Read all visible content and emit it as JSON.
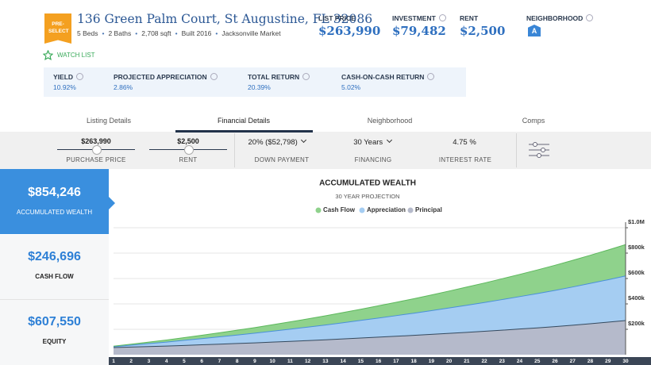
{
  "header": {
    "badge": "PRE-SELECT",
    "address": "136 Green Palm Court, St Augustine, FL 32086",
    "details": [
      "5 Beds",
      "2 Baths",
      "2,708 sqft",
      "Built 2016",
      "Jacksonville Market"
    ],
    "watch_list": "WATCH LIST"
  },
  "stats": [
    {
      "label": "LIST PRICE",
      "value": "$263,990"
    },
    {
      "label": "INVESTMENT",
      "value": "$79,482"
    },
    {
      "label": "RENT",
      "value": "$2,500"
    },
    {
      "label": "NEIGHBORHOOD",
      "value": "A"
    }
  ],
  "metrics": [
    {
      "label": "YIELD",
      "value": "10.92%"
    },
    {
      "label": "PROJECTED APPRECIATION",
      "value": "2.86%"
    },
    {
      "label": "TOTAL RETURN",
      "value": "20.39%"
    },
    {
      "label": "CASH-ON-CASH RETURN",
      "value": "5.02%"
    }
  ],
  "tabs": [
    "Listing Details",
    "Financial Details",
    "Neighborhood",
    "Comps"
  ],
  "controls": [
    {
      "value": "$263,990",
      "label": "PURCHASE PRICE"
    },
    {
      "value": "$2,500",
      "label": "RENT"
    },
    {
      "value": "20% ($52,798)",
      "label": "DOWN PAYMENT"
    },
    {
      "value": "30 Years",
      "label": "FINANCING"
    },
    {
      "value": "4.75 %",
      "label": "INTEREST RATE"
    }
  ],
  "summary": [
    {
      "value": "$854,246",
      "label": "ACCUMULATED WEALTH"
    },
    {
      "value": "$246,696",
      "label": "CASH FLOW"
    },
    {
      "value": "$607,550",
      "label": "EQUITY"
    }
  ],
  "chart_data": {
    "type": "stacked_area",
    "title": "ACCUMULATED WEALTH",
    "subtitle": "30 YEAR PROJECTION",
    "x": [
      1,
      2,
      3,
      4,
      5,
      6,
      7,
      8,
      9,
      10,
      11,
      12,
      13,
      14,
      15,
      16,
      17,
      18,
      19,
      20,
      21,
      22,
      23,
      24,
      25,
      26,
      27,
      28,
      29,
      30
    ],
    "xlim": [
      1,
      30
    ],
    "series": [
      {
        "name": "Cash Flow",
        "color": "#8fd28c",
        "line_color": "#5cb85c",
        "values": [
          3700,
          7600,
          11900,
          16500,
          21500,
          26700,
          32200,
          38100,
          44300,
          50800,
          57600,
          64800,
          72200,
          80000,
          88100,
          96400,
          105200,
          114200,
          123500,
          133200,
          143200,
          153500,
          164100,
          175000,
          186300,
          197800,
          209700,
          221900,
          234400,
          247200
        ]
      },
      {
        "name": "Appreciation",
        "color": "#a5cdf2",
        "line_color": "#4a90d9",
        "values": [
          7600,
          15300,
          23300,
          31500,
          40000,
          48700,
          57600,
          66800,
          76300,
          86000,
          96000,
          106300,
          116900,
          127800,
          139000,
          150500,
          162400,
          174600,
          187100,
          200000,
          213300,
          226900,
          241000,
          255400,
          270200,
          285500,
          301200,
          317400,
          334000,
          351100
        ]
      },
      {
        "name": "Principal",
        "color": "#b5bacb",
        "line_color": "#34495e",
        "values": [
          56000,
          60000,
          64000,
          68000,
          73000,
          78000,
          83000,
          88000,
          93000,
          99000,
          105000,
          111000,
          117000,
          124000,
          131000,
          138000,
          145000,
          152000,
          160000,
          168000,
          176000,
          184000,
          193000,
          202000,
          211000,
          221000,
          232000,
          244000,
          256000,
          269000
        ]
      }
    ],
    "ylim": [
      0,
      1000000
    ],
    "yticks": [
      {
        "value": 200000,
        "label": "$200k"
      },
      {
        "value": 400000,
        "label": "$400k"
      },
      {
        "value": 600000,
        "label": "$600k"
      },
      {
        "value": 800000,
        "label": "$800k"
      },
      {
        "value": 1000000,
        "label": "$1.0M"
      }
    ],
    "grid": true
  }
}
